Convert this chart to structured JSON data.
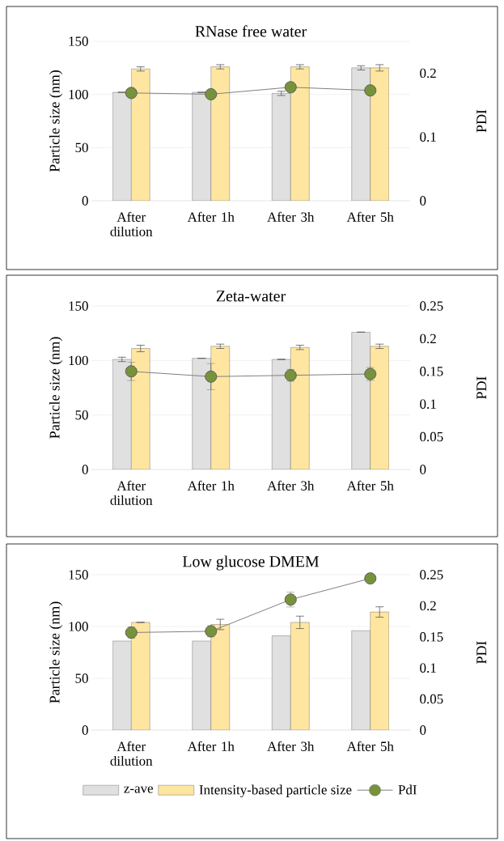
{
  "chart_data": [
    {
      "type": "bar",
      "title": "RNase free water",
      "categories": [
        "After dilution",
        "After 1h",
        "After 3h",
        "After 5h"
      ],
      "ylabel": "Particle size (nm)",
      "y2label": "PDI",
      "ylim": [
        0,
        150
      ],
      "yticks": [
        0,
        50,
        100,
        150
      ],
      "y2lim": [
        0,
        0.25
      ],
      "y2ticks": [
        0,
        0.1,
        0.2
      ],
      "grid": "y",
      "legend": false,
      "series": [
        {
          "color": "#e0e0e0",
          "values": [
            102,
            102,
            101,
            125
          ],
          "errors": [
            null,
            null,
            2,
            2
          ]
        },
        {
          "color": "#ffe6a0",
          "values": [
            124,
            126,
            126,
            125
          ],
          "errors": [
            2,
            2,
            2,
            3
          ]
        },
        {
          "type": "line",
          "axis": "y2",
          "marker": "circle",
          "color": "#76933c",
          "values": [
            0.169,
            0.167,
            0.178,
            0.173
          ]
        }
      ]
    },
    {
      "type": "bar",
      "title": "Zeta-water",
      "categories": [
        "After dilution",
        "After 1h",
        "After 3h",
        "After 5h"
      ],
      "ylabel": "Particle size (nm)",
      "y2label": "PDI",
      "ylim": [
        0,
        150
      ],
      "yticks": [
        0,
        50,
        100,
        150
      ],
      "y2lim": [
        0,
        0.25
      ],
      "y2ticks": [
        0,
        0.05,
        0.1,
        0.15,
        0.2,
        0.25
      ],
      "grid": "y",
      "legend": false,
      "series": [
        {
          "color": "#e0e0e0",
          "values": [
            101,
            102,
            101,
            126
          ],
          "errors": [
            2,
            null,
            null,
            null
          ]
        },
        {
          "color": "#ffe6a0",
          "values": [
            111,
            113,
            112,
            113
          ],
          "errors": [
            3,
            2,
            2,
            2
          ]
        },
        {
          "type": "line",
          "axis": "y2",
          "marker": "circle",
          "color": "#76933c",
          "values": [
            0.15,
            0.142,
            0.144,
            0.146
          ],
          "errors": [
            0.014,
            0.02,
            0.009,
            0.01
          ]
        }
      ]
    },
    {
      "type": "bar",
      "title": "Low glucose DMEM",
      "categories": [
        "After dilution",
        "After 1h",
        "After 3h",
        "After 5h"
      ],
      "ylabel": "Particle size (nm)",
      "y2label": "PDI",
      "ylim": [
        0,
        150
      ],
      "yticks": [
        0,
        50,
        100,
        150
      ],
      "y2lim": [
        0,
        0.25
      ],
      "y2ticks": [
        0,
        0.05,
        0.1,
        0.15,
        0.2,
        0.25
      ],
      "grid": "y",
      "legend": "bottom",
      "series": [
        {
          "name": "z-ave",
          "color": "#e0e0e0",
          "values": [
            86,
            86,
            91,
            96
          ]
        },
        {
          "name": "Intensity-based particle size",
          "color": "#ffe6a0",
          "values": [
            104,
            102,
            104,
            114
          ],
          "errors": [
            null,
            5,
            6,
            5
          ]
        },
        {
          "name": "PdI",
          "type": "line",
          "axis": "y2",
          "marker": "circle",
          "color": "#76933c",
          "values": [
            0.157,
            0.159,
            0.21,
            0.244
          ],
          "errors": [
            0.009,
            0.009,
            0.012,
            null
          ]
        }
      ]
    }
  ]
}
